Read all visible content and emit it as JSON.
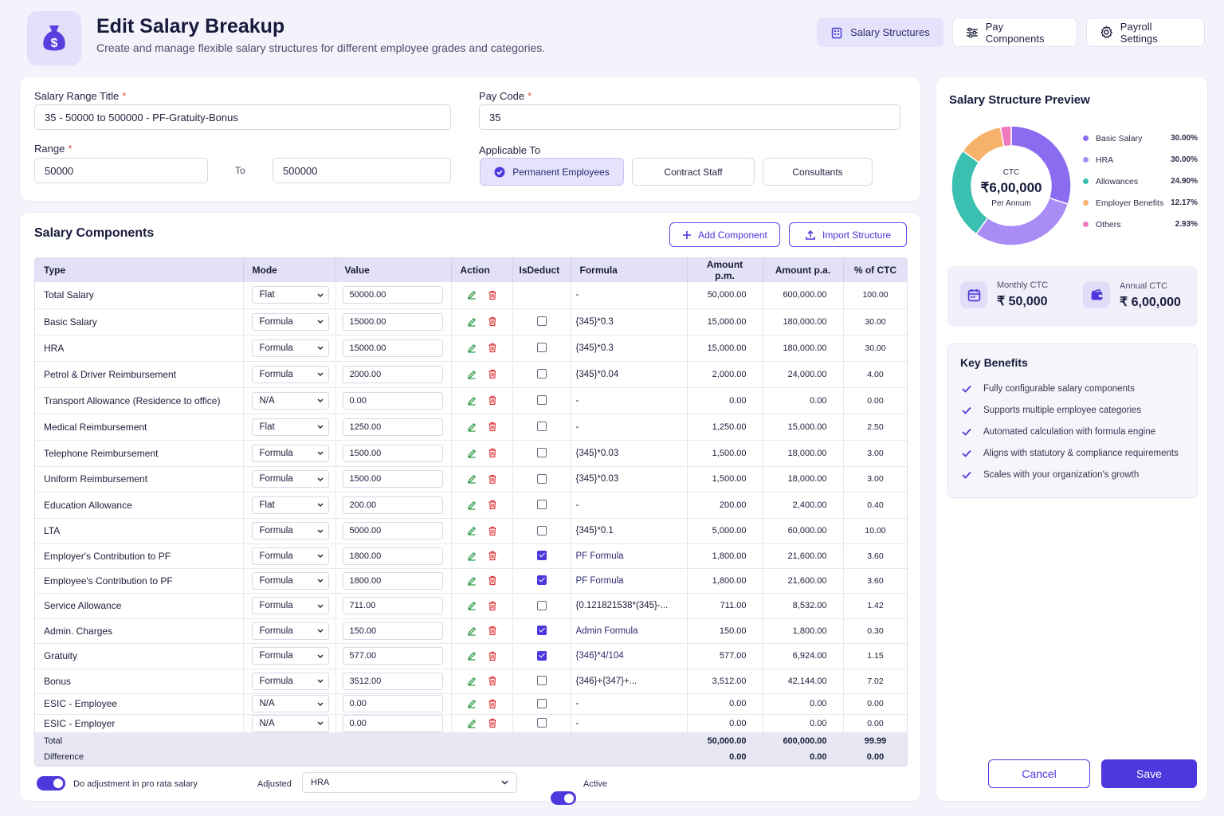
{
  "header": {
    "title": "Edit Salary Breakup",
    "subtitle": "Create and manage flexible salary structures for different employee grades and categories.",
    "nav": [
      {
        "label": "Salary Structures",
        "icon": "building-icon",
        "active": true
      },
      {
        "label": "Pay Components",
        "icon": "sliders-icon",
        "active": false
      },
      {
        "label": "Payroll Settings",
        "icon": "gear-icon",
        "active": false
      }
    ]
  },
  "form": {
    "salary_range_title_label": "Salary Range Title",
    "salary_range_title_value": "35 - 50000 to 500000 - PF-Gratuity-Bonus",
    "pay_code_label": "Pay Code",
    "pay_code_value": "35",
    "range_label": "Range",
    "range_from": "50000",
    "range_to_label": "To",
    "range_to": "500000",
    "applicable_to_label": "Applicable To",
    "applicable_options": [
      "Permanent Employees",
      "Contract Staff",
      "Consultants"
    ],
    "required_mark": "*"
  },
  "components": {
    "title": "Salary Components",
    "add_button": "Add Component",
    "import_button": "Import Structure",
    "columns": [
      "Type",
      "Mode",
      "Value",
      "Action",
      "IsDeduct",
      "Formula",
      "Amount p.m.",
      "Amount p.a.",
      "% of CTC"
    ],
    "rows": [
      {
        "type": "Total Salary",
        "mode": "Flat",
        "value": "50000.00",
        "deduct": null,
        "formula": "-",
        "pm": "50,000.00",
        "pa": "600,000.00",
        "pct": "100.00"
      },
      {
        "type": "Basic Salary",
        "mode": "Formula",
        "value": "15000.00",
        "deduct": false,
        "formula": "{345}*0.3",
        "pm": "15,000.00",
        "pa": "180,000.00",
        "pct": "30.00"
      },
      {
        "type": "HRA",
        "mode": "Formula",
        "value": "15000.00",
        "deduct": false,
        "formula": "{345}*0.3",
        "pm": "15,000.00",
        "pa": "180,000.00",
        "pct": "30.00"
      },
      {
        "type": "Petrol & Driver Reimbursement",
        "mode": "Formula",
        "value": "2000.00",
        "deduct": false,
        "formula": "{345}*0.04",
        "pm": "2,000.00",
        "pa": "24,000.00",
        "pct": "4.00"
      },
      {
        "type": "Transport Allowance (Residence to office)",
        "mode": "N/A",
        "value": "0.00",
        "deduct": false,
        "formula": "-",
        "pm": "0.00",
        "pa": "0.00",
        "pct": "0.00"
      },
      {
        "type": "Medical Reimbursement",
        "mode": "Flat",
        "value": "1250.00",
        "deduct": false,
        "formula": "-",
        "pm": "1,250.00",
        "pa": "15,000.00",
        "pct": "2.50"
      },
      {
        "type": "Telephone Reimbursement",
        "mode": "Formula",
        "value": "1500.00",
        "deduct": false,
        "formula": "{345}*0.03",
        "pm": "1,500.00",
        "pa": "18,000.00",
        "pct": "3.00"
      },
      {
        "type": "Uniform Reimbursement",
        "mode": "Formula",
        "value": "1500.00",
        "deduct": false,
        "formula": "{345}*0.03",
        "pm": "1,500.00",
        "pa": "18,000.00",
        "pct": "3.00"
      },
      {
        "type": "Education Allowance",
        "mode": "Flat",
        "value": "200.00",
        "deduct": false,
        "formula": "-",
        "pm": "200.00",
        "pa": "2,400.00",
        "pct": "0.40"
      },
      {
        "type": "LTA",
        "mode": "Formula",
        "value": "5000.00",
        "deduct": false,
        "formula": "{345}*0.1",
        "pm": "5,000.00",
        "pa": "60,000.00",
        "pct": "10.00"
      },
      {
        "type": "Employer's Contribution to PF",
        "mode": "Formula",
        "value": "1800.00",
        "deduct": true,
        "formula": "PF Formula",
        "pm": "1,800.00",
        "pa": "21,600.00",
        "pct": "3.60"
      },
      {
        "type": "Employee's Contribution to PF",
        "mode": "Formula",
        "value": "1800.00",
        "deduct": true,
        "formula": "PF Formula",
        "pm": "1,800.00",
        "pa": "21,600.00",
        "pct": "3.60"
      },
      {
        "type": "Service Allowance",
        "mode": "Formula",
        "value": "711.00",
        "deduct": false,
        "formula": "{0.121821538*(345}-...",
        "pm": "711.00",
        "pa": "8,532.00",
        "pct": "1.42"
      },
      {
        "type": "Admin. Charges",
        "mode": "Formula",
        "value": "150.00",
        "deduct": true,
        "formula": "Admin Formula",
        "pm": "150.00",
        "pa": "1,800.00",
        "pct": "0.30"
      },
      {
        "type": "Gratuity",
        "mode": "Formula",
        "value": "577.00",
        "deduct": true,
        "formula": "{346}*4/104",
        "pm": "577.00",
        "pa": "6,924.00",
        "pct": "1.15"
      },
      {
        "type": "Bonus",
        "mode": "Formula",
        "value": "3512.00",
        "deduct": false,
        "formula": "{346}+{347}+...",
        "pm": "3,512.00",
        "pa": "42,144.00",
        "pct": "7.02"
      },
      {
        "type": "ESIC - Employee",
        "mode": "N/A",
        "value": "0.00",
        "deduct": false,
        "formula": "-",
        "pm": "0.00",
        "pa": "0.00",
        "pct": "0.00"
      },
      {
        "type": "ESIC - Employer",
        "mode": "N/A",
        "value": "0.00",
        "deduct": false,
        "formula": "-",
        "pm": "0.00",
        "pa": "0.00",
        "pct": "0.00"
      }
    ],
    "total": {
      "label": "Total",
      "pm": "50,000.00",
      "pa": "600,000.00",
      "pct": "99.99"
    },
    "difference": {
      "label": "Difference",
      "pm": "0.00",
      "pa": "0.00",
      "pct": "0.00"
    }
  },
  "footer": {
    "prorata_label": "Do adjustment in pro rata salary",
    "adjusted_label": "Adjusted",
    "adjusted_value": "HRA",
    "active_label": "Active"
  },
  "preview": {
    "title": "Salary Structure Preview",
    "center_label": "CTC",
    "center_value": "₹6,00,000",
    "center_sub": "Per Annum",
    "legend": [
      {
        "name": "Basic Salary",
        "pct": "30.00%",
        "value": 30.0,
        "color": "#8b6cf0"
      },
      {
        "name": "HRA",
        "pct": "30.00%",
        "value": 30.0,
        "color": "#a98cf5"
      },
      {
        "name": "Allowances",
        "pct": "24.90%",
        "value": 24.9,
        "color": "#3bbfb0"
      },
      {
        "name": "Employer Benefits",
        "pct": "12.17%",
        "value": 12.17,
        "color": "#f6b26b"
      },
      {
        "name": "Others",
        "pct": "2.93%",
        "value": 2.93,
        "color": "#f07ac0"
      }
    ],
    "monthly_label": "Monthly CTC",
    "monthly_value": "₹ 50,000",
    "annual_label": "Annual CTC",
    "annual_value": "₹ 6,00,000"
  },
  "benefits": {
    "title": "Key Benefits",
    "items": [
      "Fully configurable salary components",
      "Supports multiple employee categories",
      "Automated calculation with formula engine",
      "Aligns with statutory & compliance requirements",
      "Scales with your organization's growth"
    ]
  },
  "actions": {
    "cancel": "Cancel",
    "save": "Save"
  }
}
